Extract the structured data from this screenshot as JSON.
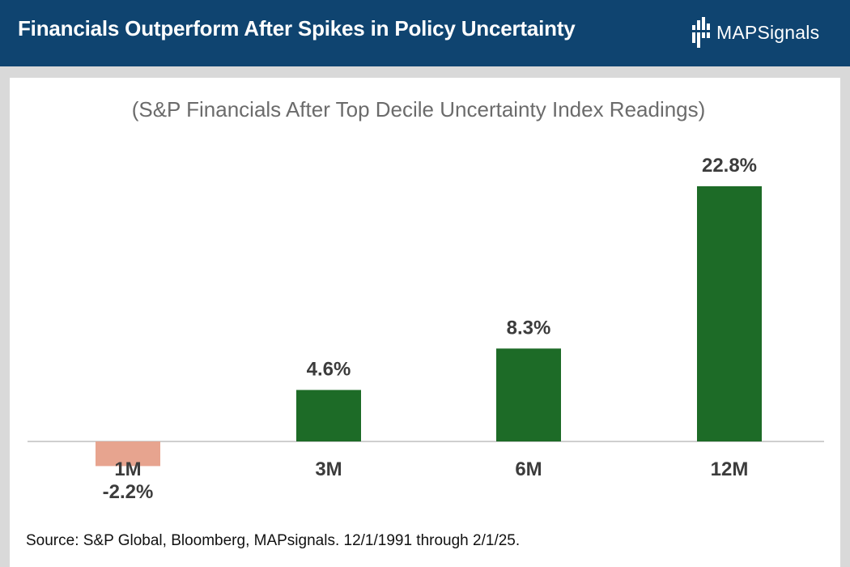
{
  "header": {
    "title": "Financials Outperform After Spikes in Policy Uncertainty",
    "logo_text": "MAPSignals"
  },
  "colors": {
    "header_bg": "#0f4470",
    "positive": "#1d6b27",
    "negative": "#e7a48f",
    "subtitle": "#6b6b6b",
    "label": "#3c3c3c"
  },
  "chart_data": {
    "type": "bar",
    "subtitle": "(S&P Financials After Top Decile Uncertainty Index Readings)",
    "categories": [
      "1M",
      "3M",
      "6M",
      "12M"
    ],
    "values": [
      -2.2,
      4.6,
      8.3,
      22.8
    ],
    "value_labels": [
      "-2.2%",
      "4.6%",
      "8.3%",
      "22.8%"
    ],
    "ylim": [
      -3,
      25
    ],
    "xlabel": "",
    "ylabel": "",
    "grid": false,
    "legend": "none"
  },
  "footer": {
    "source": "Source: S&P Global, Bloomberg, MAPsignals. 12/1/1991 through 2/1/25."
  }
}
